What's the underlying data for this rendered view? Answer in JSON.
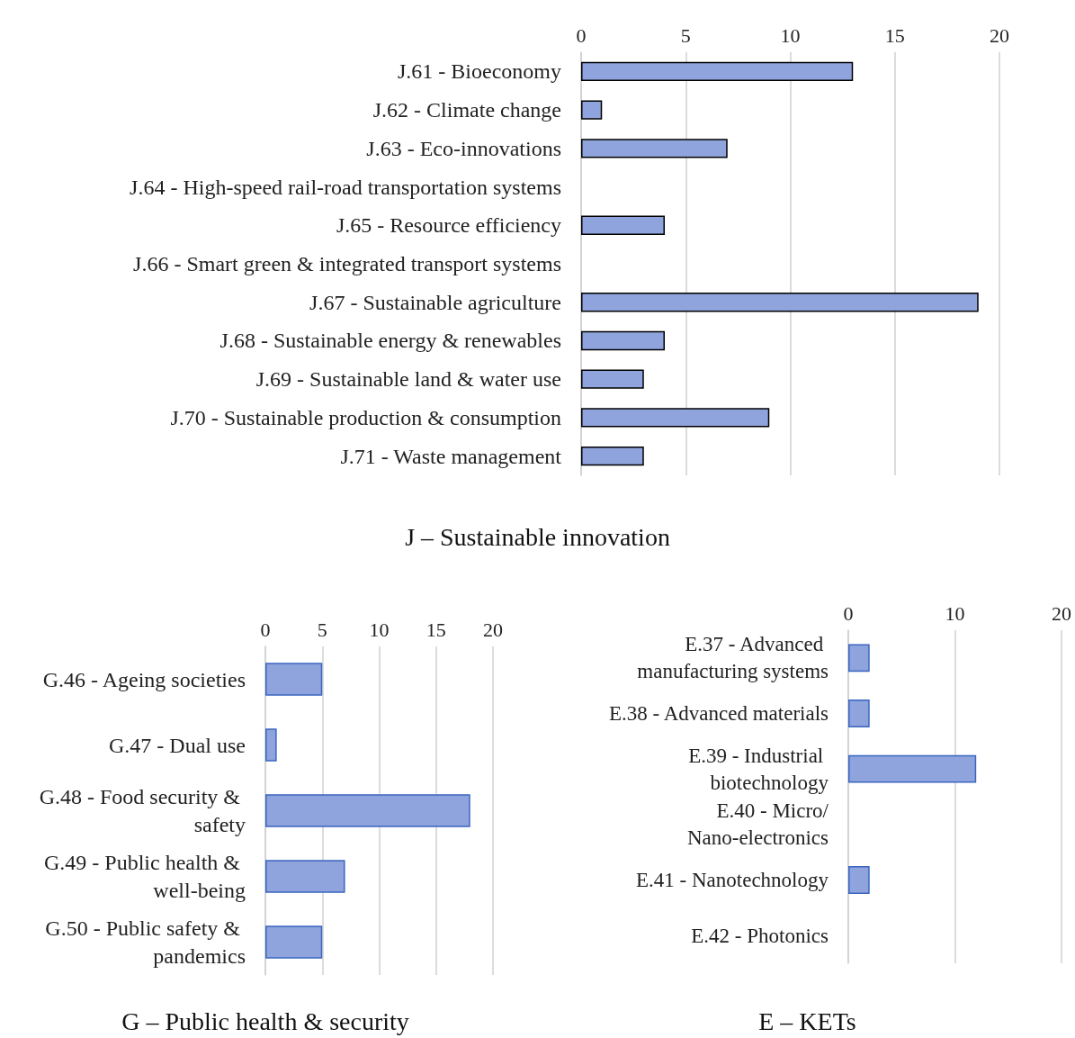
{
  "chart_data": [
    {
      "type": "bar",
      "orientation": "horizontal",
      "title": "J – Sustainable innovation",
      "categories": [
        "J.61 - Bioeconomy",
        "J.62 - Climate change",
        "J.63 - Eco-innovations",
        "J.64 - High-speed rail-road transportation systems",
        "J.65 - Resource efficiency",
        "J.66 - Smart green & integrated transport systems",
        "J.67 - Sustainable agriculture",
        "J.68 - Sustainable energy & renewables",
        "J.69 - Sustainable land & water use",
        "J.70 - Sustainable production & consumption",
        "J.71 - Waste management"
      ],
      "values": [
        13,
        1,
        7,
        null,
        4,
        null,
        19,
        4,
        3,
        9,
        3
      ],
      "color": "#8fa3dc",
      "xlim": [
        0,
        20
      ],
      "xticks": [
        0,
        5,
        10,
        15,
        20
      ],
      "grid": "x"
    },
    {
      "type": "bar",
      "orientation": "horizontal",
      "title": "G – Public health & security",
      "categories": [
        "G.46 - Ageing societies",
        "G.47 - Dual use",
        "G.48 - Food security & safety",
        "G.49 - Public health & well-being",
        "G.50 - Public safety & pandemics"
      ],
      "values": [
        5,
        1,
        18,
        7,
        5
      ],
      "color": "#8fa3dc",
      "xlim": [
        0,
        20
      ],
      "xticks": [
        0,
        5,
        10,
        15,
        20
      ],
      "grid": "x"
    },
    {
      "type": "bar",
      "orientation": "horizontal",
      "title": "E – KETs",
      "categories": [
        "E.37 - Advanced manufacturing systems",
        "E.38 - Advanced materials",
        "E.39 - Industrial biotechnology",
        "E.40 - Micro/Nano-electronics",
        "E.41 - Nanotechnology",
        "E.42 - Photonics"
      ],
      "values": [
        2,
        2,
        12,
        null,
        2,
        null
      ],
      "color": "#8fa3dc",
      "xlim": [
        0,
        20
      ],
      "xticks": [
        0,
        10,
        20
      ],
      "grid": "x"
    }
  ]
}
